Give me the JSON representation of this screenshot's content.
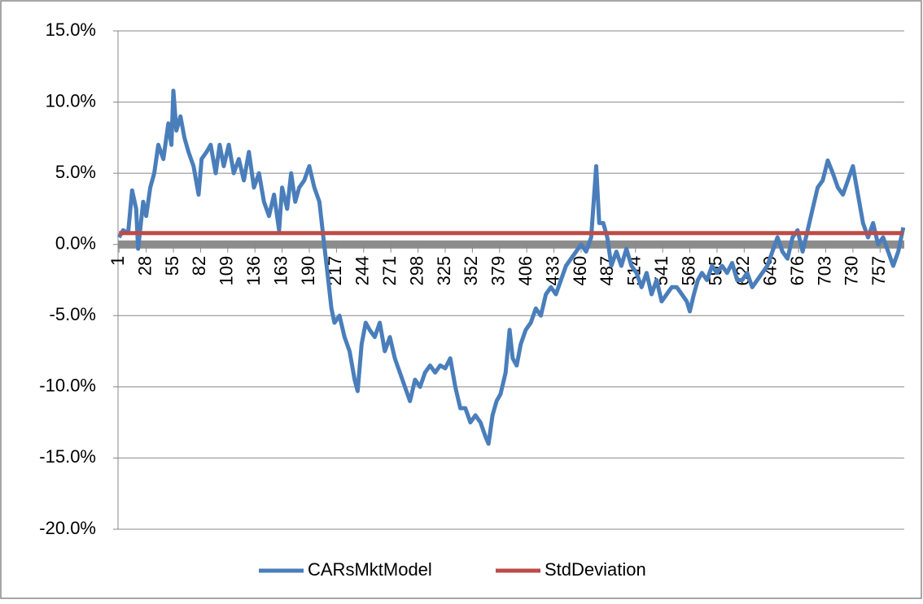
{
  "chart_data": {
    "type": "line",
    "xlim": [
      0,
      781
    ],
    "xticks": [
      1,
      28,
      55,
      82,
      109,
      136,
      163,
      190,
      217,
      244,
      271,
      298,
      325,
      352,
      379,
      406,
      433,
      460,
      487,
      514,
      541,
      568,
      595,
      622,
      649,
      676,
      703,
      730,
      757
    ],
    "ylim": [
      -20,
      15
    ],
    "yticks": [
      {
        "value": -20,
        "label": "-20.0%"
      },
      {
        "value": -15,
        "label": "-15.0%"
      },
      {
        "value": -10,
        "label": "-10.0%"
      },
      {
        "value": -5,
        "label": "-5.0%"
      },
      {
        "value": 0,
        "label": "0.0%"
      },
      {
        "value": 5,
        "label": "5.0%"
      },
      {
        "value": 10,
        "label": "10.0%"
      },
      {
        "value": 15,
        "label": "15.0%"
      }
    ],
    "grid": true,
    "legend": "bottom",
    "series": [
      {
        "name": "CARsMktModel",
        "color": "#4a7ebb",
        "x": [
          1,
          5,
          10,
          14,
          18,
          20,
          25,
          28,
          32,
          36,
          40,
          45,
          50,
          53,
          55,
          58,
          62,
          66,
          70,
          75,
          80,
          83,
          88,
          92,
          97,
          101,
          105,
          110,
          115,
          120,
          125,
          130,
          135,
          140,
          145,
          150,
          155,
          160,
          163,
          168,
          172,
          176,
          180,
          185,
          190,
          195,
          200,
          204,
          208,
          212,
          215,
          220,
          225,
          230,
          235,
          238,
          242,
          246,
          250,
          255,
          260,
          265,
          270,
          275,
          280,
          285,
          290,
          295,
          300,
          305,
          310,
          315,
          320,
          325,
          330,
          335,
          340,
          345,
          350,
          355,
          360,
          365,
          368,
          372,
          376,
          380,
          385,
          389,
          392,
          396,
          400,
          405,
          410,
          415,
          420,
          425,
          430,
          435,
          440,
          445,
          450,
          455,
          460,
          465,
          470,
          475,
          478,
          482,
          486,
          490,
          495,
          500,
          505,
          510,
          515,
          520,
          525,
          530,
          535,
          540,
          545,
          550,
          555,
          560,
          565,
          568,
          572,
          576,
          580,
          585,
          590,
          595,
          600,
          605,
          610,
          615,
          620,
          625,
          630,
          635,
          640,
          645,
          650,
          655,
          660,
          665,
          670,
          675,
          680,
          685,
          690,
          695,
          700,
          705,
          710,
          715,
          720,
          725,
          730,
          735,
          740,
          745,
          750,
          755,
          760,
          765,
          770,
          775,
          780
        ],
        "values": [
          0.5,
          1.0,
          0.8,
          3.8,
          2.5,
          -0.3,
          3.0,
          2.0,
          4.0,
          5.0,
          7.0,
          6.0,
          8.5,
          7.0,
          10.8,
          8.0,
          9.0,
          7.5,
          6.5,
          5.5,
          3.5,
          6.0,
          6.5,
          7.0,
          5.0,
          7.0,
          5.5,
          7.0,
          5.0,
          6.0,
          4.5,
          6.5,
          4.0,
          5.0,
          3.0,
          2.0,
          3.5,
          1.0,
          4.0,
          2.5,
          5.0,
          3.0,
          4.0,
          4.5,
          5.5,
          4.0,
          3.0,
          0.5,
          -2.0,
          -4.5,
          -5.5,
          -5.0,
          -6.5,
          -7.5,
          -9.5,
          -10.3,
          -7.0,
          -5.5,
          -6.0,
          -6.5,
          -5.5,
          -7.5,
          -6.5,
          -8.0,
          -9.0,
          -10.0,
          -11.0,
          -9.5,
          -10.0,
          -9.0,
          -8.5,
          -9.0,
          -8.5,
          -8.7,
          -8.0,
          -10.0,
          -11.5,
          -11.5,
          -12.5,
          -12.0,
          -12.5,
          -13.5,
          -14.0,
          -12.0,
          -11.0,
          -10.5,
          -9.0,
          -6.0,
          -8.0,
          -8.5,
          -7.0,
          -6.0,
          -5.5,
          -4.5,
          -5.0,
          -3.5,
          -3.0,
          -3.5,
          -2.5,
          -1.5,
          -1.0,
          -0.5,
          0.0,
          -0.5,
          0.5,
          5.5,
          1.5,
          1.5,
          0.5,
          -1.5,
          -0.5,
          -1.5,
          -0.3,
          -1.5,
          -2.0,
          -3.0,
          -2.0,
          -3.5,
          -2.5,
          -4.0,
          -3.5,
          -3.0,
          -3.0,
          -3.5,
          -4.0,
          -4.7,
          -3.5,
          -2.5,
          -2.0,
          -2.5,
          -1.5,
          -2.0,
          -1.5,
          -2.0,
          -1.3,
          -2.5,
          -2.5,
          -2.0,
          -3.0,
          -2.5,
          -2.0,
          -1.5,
          -0.5,
          0.5,
          -0.5,
          -1.0,
          0.5,
          1.0,
          -0.5,
          1.0,
          2.5,
          4.0,
          4.5,
          5.9,
          5.0,
          4.0,
          3.5,
          4.5,
          5.5,
          3.5,
          1.5,
          0.5,
          1.5,
          0.0,
          0.5,
          -0.5,
          -1.5,
          -0.5,
          1.2
        ]
      },
      {
        "name": "StdDeviation",
        "color": "#be4b48",
        "x": [
          1,
          780
        ],
        "values": [
          0.8,
          0.8
        ]
      }
    ]
  }
}
